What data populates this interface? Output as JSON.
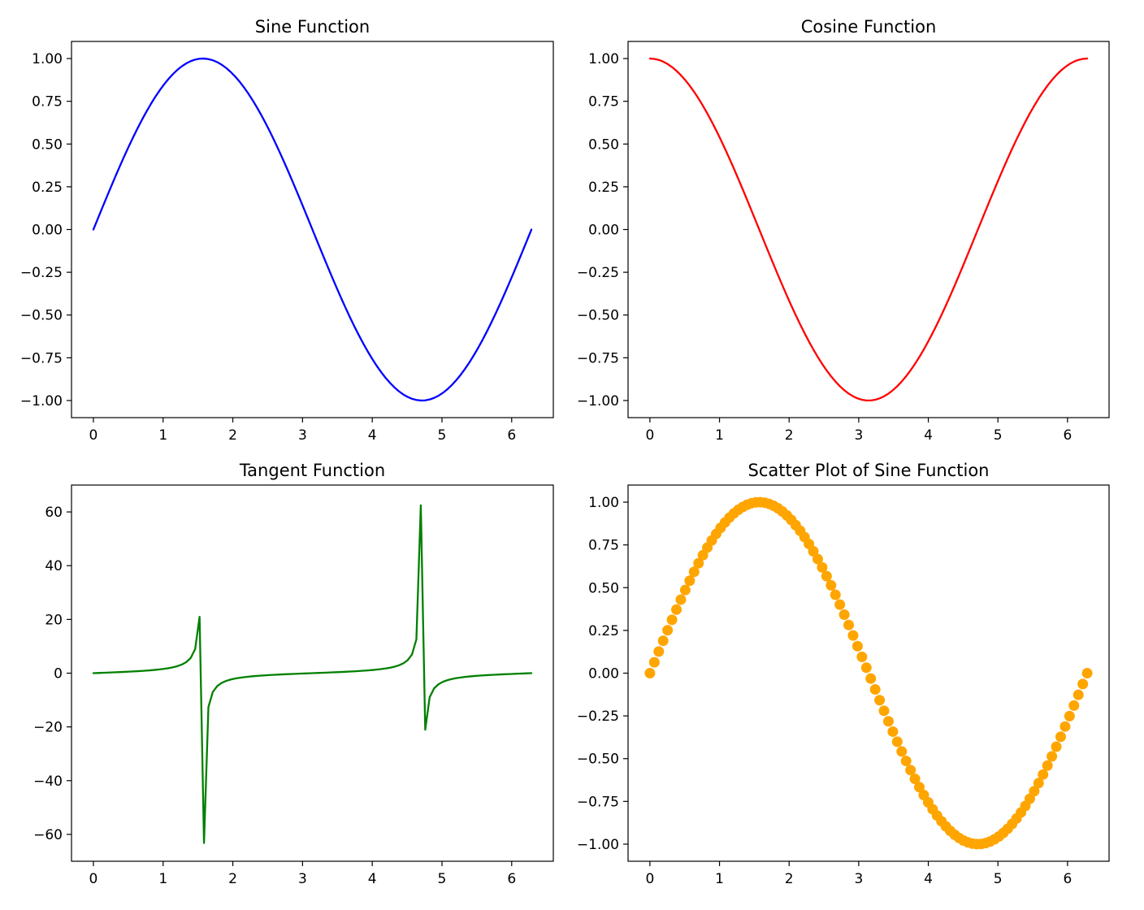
{
  "chart_data": [
    {
      "type": "line",
      "title": "Sine Function",
      "xlabel": "",
      "ylabel": "",
      "function": "sin(x)",
      "x_range": [
        0,
        6.283
      ],
      "num_points": 100,
      "sample_points": {
        "x": [
          0,
          0.785,
          1.571,
          2.356,
          3.142,
          3.927,
          4.712,
          5.498,
          6.283
        ],
        "y": [
          0,
          0.707,
          1.0,
          0.707,
          0,
          -0.707,
          -1.0,
          -0.707,
          0
        ]
      },
      "color": "#0000ff",
      "xlim": [
        -0.314,
        6.597
      ],
      "ylim": [
        -1.1,
        1.1
      ],
      "xticks": [
        0,
        1,
        2,
        3,
        4,
        5,
        6
      ],
      "yticks": [
        1.0,
        0.75,
        0.5,
        0.25,
        0.0,
        -0.25,
        -0.5,
        -0.75,
        -1.0
      ],
      "ytick_labels": [
        "1.00",
        "0.75",
        "0.50",
        "0.25",
        "0.00",
        "−0.25",
        "−0.50",
        "−0.75",
        "−1.00"
      ],
      "grid": false
    },
    {
      "type": "line",
      "title": "Cosine Function",
      "xlabel": "",
      "ylabel": "",
      "function": "cos(x)",
      "x_range": [
        0,
        6.283
      ],
      "num_points": 100,
      "sample_points": {
        "x": [
          0,
          0.785,
          1.571,
          2.356,
          3.142,
          3.927,
          4.712,
          5.498,
          6.283
        ],
        "y": [
          1.0,
          0.707,
          0,
          -0.707,
          -1.0,
          -0.707,
          0,
          0.707,
          1.0
        ]
      },
      "color": "#ff0000",
      "xlim": [
        -0.314,
        6.597
      ],
      "ylim": [
        -1.1,
        1.1
      ],
      "xticks": [
        0,
        1,
        2,
        3,
        4,
        5,
        6
      ],
      "yticks": [
        1.0,
        0.75,
        0.5,
        0.25,
        0.0,
        -0.25,
        -0.5,
        -0.75,
        -1.0
      ],
      "ytick_labels": [
        "1.00",
        "0.75",
        "0.50",
        "0.25",
        "0.00",
        "−0.25",
        "−0.50",
        "−0.75",
        "−1.00"
      ],
      "grid": false
    },
    {
      "type": "line",
      "title": "Tangent Function",
      "xlabel": "",
      "ylabel": "",
      "function": "tan(x)",
      "x_range": [
        0,
        6.283
      ],
      "num_points": 100,
      "sample_points": {
        "x": [
          0,
          1.523,
          1.587,
          3.142,
          4.665,
          4.728,
          6.283
        ],
        "y": [
          0,
          21.0,
          -63.0,
          0,
          63.0,
          -21.0,
          0
        ]
      },
      "color": "#008000",
      "xlim": [
        -0.314,
        6.597
      ],
      "ylim": [
        -70,
        70
      ],
      "xticks": [
        0,
        1,
        2,
        3,
        4,
        5,
        6
      ],
      "yticks": [
        60,
        40,
        20,
        0,
        -20,
        -40,
        -60
      ],
      "ytick_labels": [
        "60",
        "40",
        "20",
        "0",
        "−20",
        "−40",
        "−60"
      ],
      "grid": false
    },
    {
      "type": "scatter",
      "title": "Scatter Plot of Sine Function",
      "xlabel": "",
      "ylabel": "",
      "function": "sin(x)",
      "x_range": [
        0,
        6.283
      ],
      "num_points": 100,
      "sample_points": {
        "x": [
          0,
          1.571,
          3.142,
          4.712,
          6.283
        ],
        "y": [
          0,
          1.0,
          0,
          -1.0,
          0
        ]
      },
      "color": "#ffa500",
      "xlim": [
        -0.314,
        6.597
      ],
      "ylim": [
        -1.1,
        1.1
      ],
      "xticks": [
        0,
        1,
        2,
        3,
        4,
        5,
        6
      ],
      "yticks": [
        1.0,
        0.75,
        0.5,
        0.25,
        0.0,
        -0.25,
        -0.5,
        -0.75,
        -1.0
      ],
      "ytick_labels": [
        "1.00",
        "0.75",
        "0.50",
        "0.25",
        "0.00",
        "−0.25",
        "−0.50",
        "−0.75",
        "−1.00"
      ],
      "grid": false
    }
  ]
}
